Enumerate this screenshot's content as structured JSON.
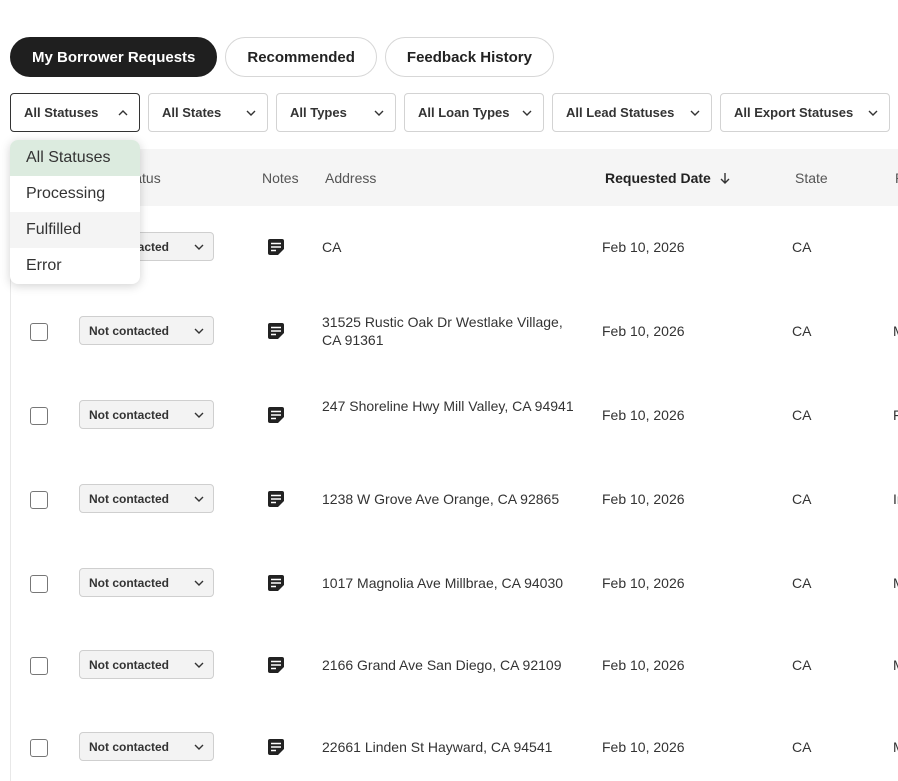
{
  "tabs": [
    {
      "label": "My Borrower Requests",
      "active": true
    },
    {
      "label": "Recommended",
      "active": false
    },
    {
      "label": "Feedback History",
      "active": false
    }
  ],
  "filters": [
    {
      "label": "All Statuses",
      "open": true
    },
    {
      "label": "All States"
    },
    {
      "label": "All Types"
    },
    {
      "label": "All Loan Types"
    },
    {
      "label": "All Lead Statuses"
    },
    {
      "label": "All Export Statuses"
    }
  ],
  "status_dropdown": {
    "options": [
      "All Statuses",
      "Processing",
      "Fulfilled",
      "Error"
    ],
    "selected": "All Statuses",
    "hovered": "Fulfilled"
  },
  "table": {
    "columns": {
      "status": "Status",
      "notes": "Notes",
      "address": "Address",
      "requested_date": "Requested Date",
      "state": "State",
      "next": "P"
    },
    "rows": [
      {
        "status": "Not contacted",
        "address": "CA",
        "date": "Feb 10, 2026",
        "state": "CA",
        "next": ""
      },
      {
        "status": "Not contacted",
        "address": "31525 Rustic Oak Dr Westlake Village, CA 91361",
        "date": "Feb 10, 2026",
        "state": "CA",
        "next": "M"
      },
      {
        "status": "Not contacted",
        "address": "247 Shoreline Hwy Mill Valley, CA 94941",
        "date": "Feb 10, 2026",
        "state": "CA",
        "next": "F"
      },
      {
        "status": "Not contacted",
        "address": "1238 W Grove Ave Orange, CA 92865",
        "date": "Feb 10, 2026",
        "state": "CA",
        "next": "Ir"
      },
      {
        "status": "Not contacted",
        "address": "1017 Magnolia Ave Millbrae, CA 94030",
        "date": "Feb 10, 2026",
        "state": "CA",
        "next": "M"
      },
      {
        "status": "Not contacted",
        "address": "2166 Grand Ave San Diego, CA 92109",
        "date": "Feb 10, 2026",
        "state": "CA",
        "next": "M"
      },
      {
        "status": "Not contacted",
        "address": "22661 Linden St Hayward, CA 94541",
        "date": "Feb 10, 2026",
        "state": "CA",
        "next": "M"
      }
    ]
  },
  "colors": {
    "active_tab_bg": "#1f1f1f",
    "selected_option_bg": "#dcebdf",
    "header_bg": "#f5f5f5"
  }
}
